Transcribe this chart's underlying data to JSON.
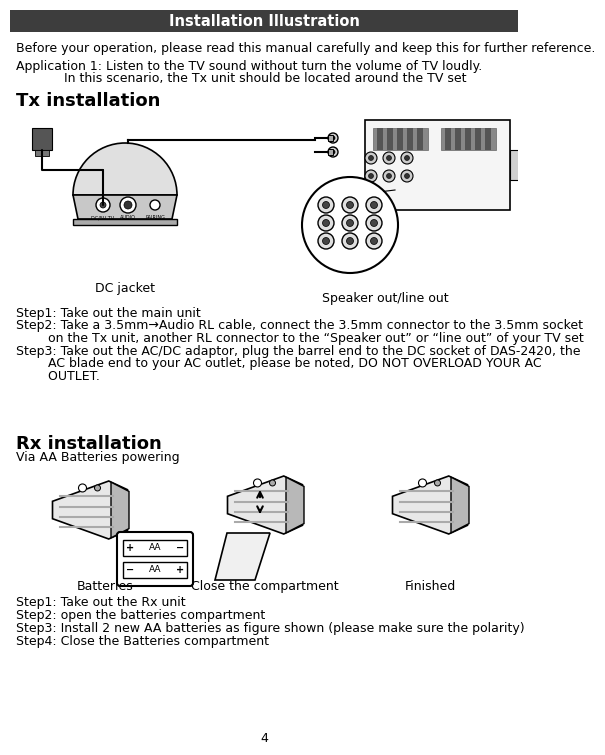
{
  "title": "Installation Illustration",
  "title_bg": "#3d3d3d",
  "title_color": "#ffffff",
  "page_bg": "#ffffff",
  "line1": "Before your operation, please read this manual carefully and keep this for further reference.",
  "line2a": "Application 1: Listen to the TV sound without turn the volume of TV loudly.",
  "line2b": "            In this scenario, the Tx unit should be located around the TV set",
  "tx_title": "Tx installation",
  "tx_steps": [
    "Step1: Take out the main unit",
    "Step2: Take a 3.5mm→Audio RL cable, connect the 3.5mm connector to the 3.5mm socket",
    "        on the Tx unit, another RL connector to the “Speaker out” or “line out” of your TV set",
    "Step3: Take out the AC/DC adaptor, plug the barrel end to the DC socket of DAS-2420, the",
    "        AC blade end to your AC outlet, please be noted, DO NOT OVERLOAD YOUR AC",
    "        OUTLET."
  ],
  "dc_label": "DC jacket",
  "speaker_label": "Speaker out/line out",
  "rx_title": "Rx installation",
  "rx_subtitle": "Via AA Batteries powering",
  "rx_steps": [
    "Step1: Take out the Rx unit",
    "Step2: open the batteries compartment",
    "Step3: Install 2 new AA batteries as figure shown (please make sure the polarity)",
    "Step4: Close the Batteries compartment"
  ],
  "batteries_label": "Batteries",
  "close_label": "Close the compartment",
  "finished_label": "Finished",
  "page_number": "4",
  "body_fs": 9,
  "title_bar_fs": 10.5,
  "section_fs": 13
}
